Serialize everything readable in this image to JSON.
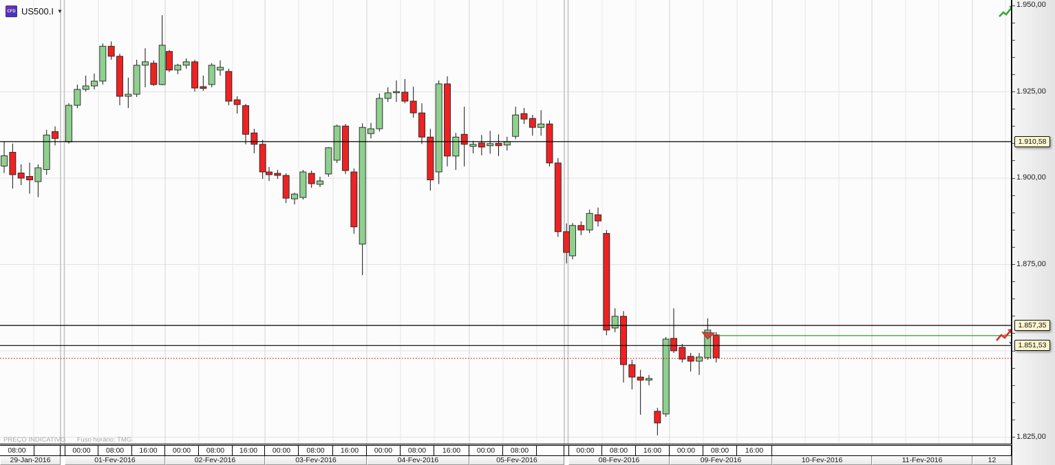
{
  "instrument": {
    "symbol": "US500.I",
    "icon_text": "CFD",
    "dropdown_glyph": "▼"
  },
  "footer": {
    "price_note": "PREÇO INDICATIVO",
    "timezone": "Fuso horário: TMG"
  },
  "price_axis": {
    "labels": [
      "1.950,00",
      "1.925,00",
      "1.900,00",
      "1.875,00",
      "1.825,00"
    ],
    "label_prices": [
      1950,
      1925,
      1900,
      1875,
      1825
    ],
    "minor_tick_step": 5,
    "boxes": [
      {
        "text": "1.910,58",
        "price": 1910.58
      },
      {
        "text": "1.857,35",
        "price": 1857.35
      },
      {
        "text": "1.851,53",
        "price": 1851.53
      }
    ]
  },
  "time_axis": {
    "hour_labels": [
      "08:00",
      "",
      "00:00",
      "08:00",
      "16:00",
      "00:00",
      "08:00",
      "16:00",
      "00:00",
      "08:00",
      "16:00",
      "00:00",
      "08:00",
      "16:00",
      "00:00",
      "08:00",
      "",
      "00:00",
      "08:00",
      "16:00",
      "00:00",
      "08:00",
      "16:00",
      ""
    ],
    "dates": [
      "29-Jan-2016",
      "01-Fev-2016",
      "02-Fev-2016",
      "03-Fev-2016",
      "04-Fev-2016",
      "05-Fev-2016",
      "08-Fev-2016",
      "09-Fev-2016",
      "10-Fev-2016",
      "11-Fev-2016",
      "12"
    ]
  },
  "overlays": {
    "price_lines": [
      {
        "name": "level-line-upper",
        "price": 1910.58,
        "style": "solid",
        "color": "#000000",
        "box_label": "1.910,58"
      },
      {
        "name": "level-line-mid",
        "price": 1857.35,
        "style": "solid",
        "color": "#000000",
        "box_label": "1.857,35"
      },
      {
        "name": "level-line-lower",
        "price": 1851.53,
        "style": "solid",
        "color": "#000000",
        "box_label": "1.851,53"
      },
      {
        "name": "stop-line",
        "price": 1847.8,
        "style": "dotted",
        "color": "#e00000"
      },
      {
        "name": "order-line",
        "price": 1854.4,
        "style": "solid",
        "color": "#2f9e2f",
        "starts_at": "09-Fev-2016 08:00"
      }
    ],
    "trade_marker": {
      "shape": "down-triangle",
      "color": "#d04038",
      "price": 1854.8,
      "date": "09-Fev-2016",
      "time": "08:00"
    },
    "icons": {
      "top_right": "green-trend-arrow-icon",
      "at_order_line": "red-trend-arrow-icon"
    }
  },
  "chart_data": {
    "type": "candlestick",
    "interval": "2h",
    "title": "US500.I",
    "ylim": [
      1822,
      1952
    ],
    "grid": true,
    "up_color": "#8fd08f",
    "down_color": "#ee2222",
    "ohlc_columns": [
      "date",
      "time",
      "open",
      "high",
      "low",
      "close"
    ],
    "series": [
      [
        "29-Jan-2016",
        "08:00",
        1903.5,
        1910.5,
        1901.5,
        1906.5
      ],
      [
        "29-Jan-2016",
        "10:00",
        1907.5,
        1910.0,
        1897.0,
        1901.0
      ],
      [
        "29-Jan-2016",
        "12:00",
        1901.5,
        1904.0,
        1898.0,
        1900.0
      ],
      [
        "29-Jan-2016",
        "14:00",
        1900.5,
        1904.5,
        1895.5,
        1899.5
      ],
      [
        "29-Jan-2016",
        "16:00",
        1899.0,
        1904.0,
        1894.5,
        1903.0
      ],
      [
        "29-Jan-2016",
        "18:00",
        1902.5,
        1914.0,
        1901.0,
        1912.5
      ],
      [
        "29-Jan-2016",
        "20:00",
        1913.5,
        1915.0,
        1909.5,
        1911.5
      ],
      [
        "01-Fev-2016",
        "00:00",
        1910.5,
        1921.7,
        1910.0,
        1921.1
      ],
      [
        "01-Fev-2016",
        "02:00",
        1921.1,
        1927.1,
        1920.3,
        1925.7
      ],
      [
        "01-Fev-2016",
        "04:00",
        1925.7,
        1929.7,
        1925.1,
        1926.7
      ],
      [
        "01-Fev-2016",
        "06:00",
        1926.7,
        1930.3,
        1925.7,
        1928.1
      ],
      [
        "01-Fev-2016",
        "08:00",
        1928.1,
        1939.0,
        1927.1,
        1938.2
      ],
      [
        "01-Fev-2016",
        "10:00",
        1938.2,
        1939.6,
        1934.3,
        1935.3
      ],
      [
        "01-Fev-2016",
        "12:00",
        1935.3,
        1936.0,
        1921.1,
        1923.7
      ],
      [
        "01-Fev-2016",
        "14:00",
        1923.7,
        1929.1,
        1920.3,
        1924.3
      ],
      [
        "01-Fev-2016",
        "16:00",
        1924.3,
        1934.3,
        1923.5,
        1932.7
      ],
      [
        "01-Fev-2016",
        "18:00",
        1932.7,
        1937.6,
        1926.3,
        1933.7
      ],
      [
        "01-Fev-2016",
        "20:00",
        1933.3,
        1934.1,
        1926.7,
        1927.1
      ],
      [
        "01-Fev-2016",
        "22:00",
        1927.1,
        1947.2,
        1926.9,
        1938.5
      ],
      [
        "02-Fev-2016",
        "00:00",
        1936.7,
        1937.1,
        1930.7,
        1931.3
      ],
      [
        "02-Fev-2016",
        "02:00",
        1931.3,
        1933.1,
        1930.1,
        1932.7
      ],
      [
        "02-Fev-2016",
        "04:00",
        1932.7,
        1934.7,
        1931.7,
        1933.7
      ],
      [
        "02-Fev-2016",
        "06:00",
        1933.7,
        1934.3,
        1925.1,
        1926.1
      ],
      [
        "02-Fev-2016",
        "08:00",
        1926.5,
        1929.7,
        1925.3,
        1926.0
      ],
      [
        "02-Fev-2016",
        "10:00",
        1927.1,
        1933.3,
        1926.3,
        1932.7
      ],
      [
        "02-Fev-2016",
        "12:00",
        1931.3,
        1934.1,
        1929.7,
        1932.1
      ],
      [
        "02-Fev-2016",
        "14:00",
        1930.9,
        1931.7,
        1921.1,
        1922.3
      ],
      [
        "02-Fev-2016",
        "16:00",
        1922.7,
        1923.7,
        1918.7,
        1921.3
      ],
      [
        "02-Fev-2016",
        "18:00",
        1921.0,
        1921.5,
        1909.8,
        1912.7
      ],
      [
        "02-Fev-2016",
        "20:00",
        1913.1,
        1914.3,
        1907.2,
        1909.8
      ],
      [
        "02-Fev-2016",
        "22:00",
        1909.8,
        1911.1,
        1899.8,
        1901.8
      ],
      [
        "03-Fev-2016",
        "00:00",
        1901.8,
        1903.2,
        1899.2,
        1901.0
      ],
      [
        "03-Fev-2016",
        "02:00",
        1901.4,
        1902.4,
        1899.8,
        1900.8
      ],
      [
        "03-Fev-2016",
        "04:00",
        1900.8,
        1901.4,
        1892.8,
        1894.2
      ],
      [
        "03-Fev-2016",
        "06:00",
        1894.0,
        1895.8,
        1892.4,
        1895.4
      ],
      [
        "03-Fev-2016",
        "08:00",
        1894.4,
        1902.4,
        1893.8,
        1901.8
      ],
      [
        "03-Fev-2016",
        "10:00",
        1901.4,
        1902.2,
        1897.2,
        1898.4
      ],
      [
        "03-Fev-2016",
        "12:00",
        1898.2,
        1900.4,
        1897.4,
        1899.2
      ],
      [
        "03-Fev-2016",
        "14:00",
        1901.2,
        1909.0,
        1900.4,
        1908.8
      ],
      [
        "03-Fev-2016",
        "16:00",
        1905.2,
        1915.5,
        1904.4,
        1915.1
      ],
      [
        "03-Fev-2016",
        "18:00",
        1915.1,
        1915.7,
        1901.2,
        1902.2
      ],
      [
        "03-Fev-2016",
        "20:00",
        1901.8,
        1902.8,
        1883.9,
        1885.9
      ],
      [
        "03-Fev-2016",
        "22:00",
        1880.9,
        1915.9,
        1871.9,
        1914.7
      ],
      [
        "04-Fev-2016",
        "00:00",
        1912.9,
        1916.0,
        1911.5,
        1914.3
      ],
      [
        "04-Fev-2016",
        "02:00",
        1914.3,
        1924.5,
        1913.5,
        1923.1
      ],
      [
        "04-Fev-2016",
        "04:00",
        1923.1,
        1926.3,
        1922.1,
        1924.7
      ],
      [
        "04-Fev-2016",
        "06:00",
        1924.7,
        1928.3,
        1922.1,
        1924.9
      ],
      [
        "04-Fev-2016",
        "08:00",
        1924.9,
        1928.7,
        1921.7,
        1922.3
      ],
      [
        "04-Fev-2016",
        "10:00",
        1922.3,
        1926.5,
        1917.5,
        1918.9
      ],
      [
        "04-Fev-2016",
        "12:00",
        1918.9,
        1921.7,
        1909.9,
        1911.9
      ],
      [
        "04-Fev-2016",
        "14:00",
        1911.9,
        1914.3,
        1896.4,
        1899.5
      ],
      [
        "04-Fev-2016",
        "16:00",
        1901.8,
        1928.3,
        1898.3,
        1927.3
      ],
      [
        "04-Fev-2016",
        "18:00",
        1927.3,
        1929.5,
        1903.4,
        1906.4
      ],
      [
        "04-Fev-2016",
        "20:00",
        1906.4,
        1913.1,
        1902.4,
        1911.9
      ],
      [
        "04-Fev-2016",
        "22:00",
        1912.7,
        1920.7,
        1903.4,
        1909.8
      ],
      [
        "05-Fev-2016",
        "00:00",
        1909.2,
        1910.8,
        1907.2,
        1909.8
      ],
      [
        "05-Fev-2016",
        "02:00",
        1910.2,
        1912.5,
        1906.6,
        1909.0
      ],
      [
        "05-Fev-2016",
        "04:00",
        1909.4,
        1913.7,
        1907.1,
        1910.0
      ],
      [
        "05-Fev-2016",
        "06:00",
        1910.1,
        1912.7,
        1906.4,
        1909.4
      ],
      [
        "05-Fev-2016",
        "08:00",
        1909.6,
        1912.0,
        1908.0,
        1910.6
      ],
      [
        "05-Fev-2016",
        "10:00",
        1912.1,
        1920.7,
        1911.3,
        1918.3
      ],
      [
        "05-Fev-2016",
        "12:00",
        1918.7,
        1920.3,
        1915.7,
        1917.1
      ],
      [
        "05-Fev-2016",
        "14:00",
        1917.3,
        1918.3,
        1912.3,
        1914.7
      ],
      [
        "05-Fev-2016",
        "16:00",
        1914.7,
        1919.7,
        1912.3,
        1915.7
      ],
      [
        "05-Fev-2016",
        "18:00",
        1915.7,
        1916.7,
        1903.4,
        1904.4
      ],
      [
        "05-Fev-2016",
        "20:00",
        1904.4,
        1905.8,
        1883.0,
        1884.5
      ],
      [
        "05-Fev-2016",
        "22:00",
        1884.5,
        1886.9,
        1875.3,
        1878.5
      ],
      [
        "08-Fev-2016",
        "00:00",
        1877.5,
        1887.0,
        1876.5,
        1886.3
      ],
      [
        "08-Fev-2016",
        "02:00",
        1886.3,
        1887.5,
        1883.5,
        1885.0
      ],
      [
        "08-Fev-2016",
        "04:00",
        1885.0,
        1890.9,
        1884.1,
        1889.8
      ],
      [
        "08-Fev-2016",
        "06:00",
        1889.4,
        1891.5,
        1886.0,
        1887.6
      ],
      [
        "08-Fev-2016",
        "08:00",
        1884.0,
        1885.0,
        1854.5,
        1856.0
      ],
      [
        "08-Fev-2016",
        "10:00",
        1856.6,
        1862.3,
        1855.4,
        1860.0
      ],
      [
        "08-Fev-2016",
        "12:00",
        1860.0,
        1861.5,
        1840.8,
        1846.0
      ],
      [
        "08-Fev-2016",
        "14:00",
        1846.0,
        1847.4,
        1838.8,
        1842.4
      ],
      [
        "08-Fev-2016",
        "16:00",
        1842.4,
        1844.5,
        1831.5,
        1841.5
      ],
      [
        "08-Fev-2016",
        "18:00",
        1841.5,
        1843.0,
        1840.0,
        1842.0
      ],
      [
        "08-Fev-2016",
        "20:00",
        1832.5,
        1833.5,
        1825.5,
        1829.1
      ],
      [
        "08-Fev-2016",
        "22:00",
        1831.7,
        1854.0,
        1830.9,
        1853.4
      ],
      [
        "09-Fev-2016",
        "00:00",
        1853.6,
        1862.3,
        1849.4,
        1850.0
      ],
      [
        "09-Fev-2016",
        "02:00",
        1851.0,
        1852.0,
        1846.6,
        1847.6
      ],
      [
        "09-Fev-2016",
        "04:00",
        1848.4,
        1849.4,
        1844.0,
        1847.0
      ],
      [
        "09-Fev-2016",
        "06:00",
        1847.0,
        1849.4,
        1843.0,
        1848.2
      ],
      [
        "09-Fev-2016",
        "08:00",
        1848.0,
        1859.4,
        1847.4,
        1856.0
      ],
      [
        "09-Fev-2016",
        "10:00",
        1854.6,
        1855.4,
        1846.6,
        1848.0
      ]
    ]
  }
}
